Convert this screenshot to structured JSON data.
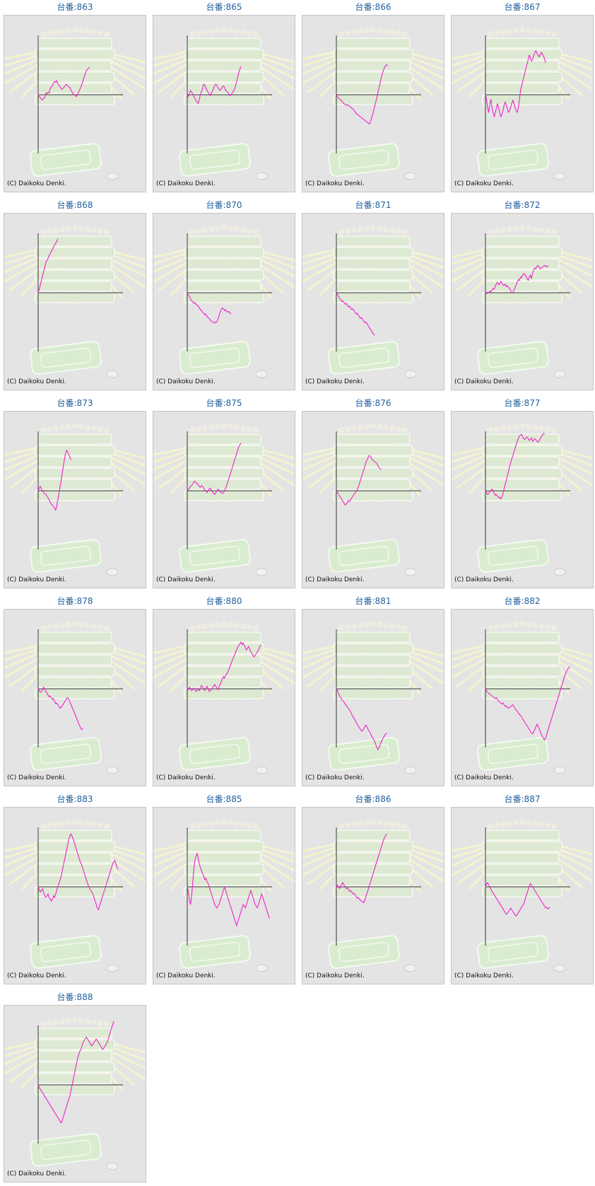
{
  "colors": {
    "title": "#1f5f9e",
    "line": "#ee22cc",
    "background": "#e4e4e4",
    "axis": "#333333"
  },
  "copyright": "(C) Daikoku Denki.",
  "chart_data": [
    {
      "type": "line",
      "title": "台番:863",
      "values": [
        0,
        -2,
        -3,
        -5,
        -6,
        -4,
        -3,
        2,
        1,
        3,
        2,
        7,
        9,
        10,
        13,
        15,
        14,
        16,
        12,
        11,
        9,
        7,
        6,
        8,
        9,
        11,
        12,
        10,
        9,
        8,
        5,
        3,
        1,
        0,
        -1,
        -2,
        0,
        3,
        6,
        9,
        12,
        16,
        20,
        24,
        27,
        29,
        30,
        31
      ]
    },
    {
      "type": "line",
      "title": "台番:865",
      "values": [
        0,
        -2,
        2,
        5,
        3,
        1,
        -2,
        -4,
        -7,
        -8,
        -10,
        -5,
        0,
        4,
        7,
        12,
        11,
        8,
        5,
        3,
        1,
        -1,
        2,
        4,
        7,
        10,
        12,
        11,
        8,
        6,
        5,
        7,
        9,
        10,
        8,
        5,
        4,
        3,
        1,
        -1,
        0,
        2,
        4,
        6,
        10,
        15,
        20,
        25,
        29,
        32
      ]
    },
    {
      "type": "line",
      "title": "台番:866",
      "values": [
        0,
        -2,
        -4,
        -5,
        -6,
        -7,
        -9,
        -10,
        -11,
        -12,
        -11,
        -12,
        -13,
        -14,
        -15,
        -16,
        -17,
        -19,
        -21,
        -22,
        -23,
        -24,
        -25,
        -26,
        -27,
        -28,
        -29,
        -30,
        -31,
        -32,
        -33,
        -31,
        -27,
        -23,
        -18,
        -13,
        -8,
        -3,
        3,
        8,
        14,
        19,
        24,
        28,
        31,
        33,
        34,
        33
      ]
    },
    {
      "type": "line",
      "title": "台番:867",
      "values": [
        0,
        -5,
        -15,
        -20,
        -10,
        -5,
        -15,
        -20,
        -25,
        -20,
        -15,
        -10,
        -15,
        -20,
        -25,
        -22,
        -18,
        -12,
        -8,
        -12,
        -16,
        -20,
        -18,
        -14,
        -10,
        -6,
        -10,
        -14,
        -18,
        -20,
        -15,
        -5,
        5,
        10,
        15,
        20,
        25,
        30,
        35,
        40,
        45,
        42,
        38,
        40,
        44,
        48,
        50,
        47,
        45,
        43,
        45,
        48,
        46,
        44,
        40,
        36
      ]
    },
    {
      "type": "line",
      "title": "台番:868",
      "values": [
        0,
        4,
        9,
        14,
        19,
        24,
        29,
        34,
        37,
        39,
        42,
        44,
        47,
        49,
        52,
        54,
        56,
        58,
        61
      ]
    },
    {
      "type": "line",
      "title": "台番:870",
      "values": [
        0,
        -2,
        -4,
        -7,
        -9,
        -10,
        -12,
        -11,
        -13,
        -14,
        -15,
        -17,
        -19,
        -20,
        -22,
        -23,
        -25,
        -24,
        -27,
        -28,
        -29,
        -31,
        -32,
        -33,
        -34,
        -33,
        -34,
        -33,
        -30,
        -26,
        -22,
        -19,
        -17,
        -18,
        -20,
        -19,
        -21,
        -22,
        -21,
        -23,
        -24
      ]
    },
    {
      "type": "line",
      "title": "台番:871",
      "values": [
        0,
        -2,
        -4,
        -6,
        -8,
        -10,
        -9,
        -11,
        -13,
        -12,
        -14,
        -16,
        -15,
        -17,
        -19,
        -18,
        -20,
        -22,
        -24,
        -23,
        -25,
        -27,
        -29,
        -28,
        -30,
        -32,
        -34,
        -33,
        -35,
        -37,
        -39,
        -41,
        -43,
        -45,
        -47,
        -48
      ]
    },
    {
      "type": "line",
      "title": "台番:872",
      "values": [
        0,
        -1,
        1,
        0,
        2,
        1,
        3,
        5,
        4,
        8,
        10,
        12,
        9,
        10,
        13,
        11,
        9,
        8,
        10,
        7,
        8,
        6,
        5,
        2,
        0,
        1,
        3,
        6,
        9,
        12,
        15,
        14,
        18,
        17,
        20,
        22,
        21,
        19,
        16,
        14,
        18,
        20,
        16,
        22,
        26,
        28,
        27,
        30,
        31,
        29,
        27,
        28,
        29,
        30,
        31,
        30,
        29,
        31
      ]
    },
    {
      "type": "line",
      "title": "台番:873",
      "values": [
        0,
        3,
        5,
        2,
        0,
        -2,
        -3,
        -4,
        -6,
        -8,
        -10,
        -13,
        -15,
        -16,
        -18,
        -20,
        -22,
        -17,
        -10,
        -3,
        5,
        12,
        20,
        28,
        36,
        42,
        46,
        44,
        41,
        38,
        35
      ]
    },
    {
      "type": "line",
      "title": "台番:875",
      "values": [
        0,
        1,
        3,
        5,
        6,
        8,
        10,
        11,
        9,
        8,
        7,
        5,
        4,
        6,
        5,
        3,
        1,
        0,
        -2,
        0,
        2,
        3,
        1,
        -1,
        -3,
        -4,
        -2,
        0,
        2,
        1,
        -1,
        -2,
        -3,
        -2,
        0,
        3,
        6,
        10,
        14,
        18,
        22,
        26,
        30,
        34,
        38,
        42,
        46,
        50,
        52,
        54
      ]
    },
    {
      "type": "line",
      "title": "台番:876",
      "values": [
        0,
        -2,
        -4,
        -6,
        -8,
        -10,
        -12,
        -14,
        -16,
        -15,
        -13,
        -11,
        -12,
        -10,
        -8,
        -6,
        -4,
        -3,
        -1,
        1,
        4,
        8,
        12,
        16,
        20,
        24,
        28,
        32,
        35,
        38,
        40,
        39,
        37,
        35,
        34,
        33,
        32,
        31,
        28,
        26,
        25,
        24
      ]
    },
    {
      "type": "line",
      "title": "台番:877",
      "values": [
        0,
        -2,
        -4,
        -3,
        -1,
        0,
        2,
        0,
        -3,
        -5,
        -4,
        -6,
        -8,
        -7,
        -9,
        -7,
        -3,
        2,
        7,
        12,
        17,
        22,
        27,
        32,
        36,
        40,
        44,
        48,
        52,
        56,
        59,
        62,
        63,
        64,
        61,
        59,
        58,
        60,
        61,
        59,
        57,
        58,
        60,
        56,
        57,
        59,
        58,
        56,
        55,
        57,
        59,
        61,
        63,
        65,
        64
      ]
    },
    {
      "type": "line",
      "title": "台番:878",
      "values": [
        0,
        -2,
        -4,
        -3,
        -1,
        2,
        0,
        -3,
        -5,
        -7,
        -9,
        -8,
        -10,
        -12,
        -11,
        -14,
        -17,
        -16,
        -18,
        -20,
        -22,
        -21,
        -19,
        -17,
        -15,
        -13,
        -11,
        -10,
        -12,
        -15,
        -18,
        -21,
        -24,
        -27,
        -30,
        -33,
        -36,
        -39,
        -42,
        -45,
        -46,
        -45
      ]
    },
    {
      "type": "line",
      "title": "台番:880",
      "values": [
        0,
        -1,
        2,
        0,
        -2,
        -1,
        1,
        -1,
        -3,
        -2,
        0,
        -2,
        1,
        4,
        2,
        0,
        -2,
        1,
        3,
        0,
        -3,
        -2,
        -1,
        1,
        3,
        5,
        3,
        1,
        -1,
        2,
        5,
        8,
        11,
        14,
        12,
        15,
        17,
        19,
        22,
        25,
        29,
        32,
        35,
        38,
        41,
        44,
        47,
        49,
        51,
        53,
        50,
        52,
        49,
        47,
        44,
        46,
        48,
        45,
        42,
        40,
        38,
        36,
        38,
        40,
        42,
        44,
        47,
        50
      ]
    },
    {
      "type": "line",
      "title": "台番:881",
      "values": [
        0,
        -2,
        -5,
        -8,
        -10,
        -12,
        -14,
        -15,
        -17,
        -19,
        -20,
        -22,
        -24,
        -26,
        -29,
        -31,
        -33,
        -35,
        -38,
        -40,
        -42,
        -44,
        -46,
        -48,
        -47,
        -45,
        -43,
        -41,
        -43,
        -46,
        -48,
        -50,
        -53,
        -55,
        -57,
        -60,
        -63,
        -66,
        -69,
        -66,
        -63,
        -60,
        -57,
        -55,
        -53,
        -51,
        -50
      ]
    },
    {
      "type": "line",
      "title": "台番:882",
      "values": [
        0,
        -2,
        -4,
        -5,
        -6,
        -7,
        -8,
        -9,
        -10,
        -11,
        -10,
        -12,
        -14,
        -15,
        -16,
        -17,
        -16,
        -18,
        -20,
        -19,
        -21,
        -22,
        -21,
        -20,
        -19,
        -18,
        -20,
        -22,
        -24,
        -25,
        -27,
        -29,
        -30,
        -32,
        -34,
        -36,
        -38,
        -40,
        -42,
        -44,
        -46,
        -48,
        -50,
        -51,
        -49,
        -46,
        -43,
        -40,
        -42,
        -45,
        -48,
        -51,
        -54,
        -56,
        -58,
        -55,
        -51,
        -47,
        -43,
        -39,
        -35,
        -31,
        -27,
        -23,
        -19,
        -15,
        -11,
        -7,
        -3,
        1,
        5,
        9,
        13,
        17,
        20,
        22,
        24,
        25
      ]
    },
    {
      "type": "line",
      "title": "台番:883",
      "values": [
        0,
        -3,
        -6,
        -4,
        -2,
        -6,
        -10,
        -12,
        -10,
        -8,
        -12,
        -14,
        -16,
        -14,
        -10,
        -12,
        -8,
        -4,
        0,
        4,
        8,
        12,
        18,
        24,
        30,
        36,
        42,
        48,
        54,
        58,
        60,
        57,
        54,
        50,
        46,
        42,
        38,
        34,
        30,
        27,
        24,
        20,
        16,
        12,
        8,
        4,
        1,
        -2,
        -4,
        -6,
        -8,
        -12,
        -16,
        -20,
        -24,
        -26,
        -22,
        -18,
        -14,
        -10,
        -6,
        -2,
        2,
        6,
        10,
        14,
        18,
        22,
        26,
        28,
        30,
        26,
        22,
        20
      ]
    },
    {
      "type": "line",
      "title": "台番:885",
      "values": [
        0,
        -5,
        -15,
        -20,
        -10,
        5,
        20,
        30,
        35,
        38,
        33,
        26,
        22,
        18,
        15,
        12,
        8,
        10,
        6,
        4,
        0,
        -4,
        -8,
        -12,
        -16,
        -20,
        -22,
        -24,
        -22,
        -20,
        -16,
        -12,
        -8,
        -4,
        0,
        -4,
        -8,
        -12,
        -16,
        -20,
        -24,
        -28,
        -32,
        -36,
        -40,
        -44,
        -40,
        -36,
        -32,
        -28,
        -24,
        -20,
        -22,
        -24,
        -20,
        -16,
        -12,
        -8,
        -4,
        -8,
        -12,
        -16,
        -20,
        -22,
        -24,
        -20,
        -16,
        -12,
        -8,
        -12,
        -16,
        -20,
        -24,
        -28,
        -32,
        -36
      ]
    },
    {
      "type": "line",
      "title": "台番:886",
      "values": [
        0,
        2,
        0,
        -2,
        1,
        3,
        5,
        2,
        0,
        -2,
        -1,
        -3,
        -5,
        -4,
        -6,
        -8,
        -7,
        -9,
        -11,
        -13,
        -12,
        -14,
        -15,
        -16,
        -17,
        -18,
        -15,
        -11,
        -7,
        -3,
        1,
        5,
        9,
        13,
        17,
        21,
        25,
        29,
        33,
        37,
        41,
        45,
        49,
        53,
        56,
        58,
        60
      ]
    },
    {
      "type": "line",
      "title": "台番:887",
      "values": [
        0,
        3,
        5,
        2,
        0,
        -3,
        -5,
        -7,
        -9,
        -11,
        -13,
        -15,
        -17,
        -19,
        -21,
        -23,
        -25,
        -27,
        -29,
        -31,
        -30,
        -28,
        -26,
        -24,
        -26,
        -28,
        -30,
        -32,
        -33,
        -31,
        -29,
        -27,
        -25,
        -23,
        -21,
        -19,
        -15,
        -11,
        -7,
        -3,
        1,
        4,
        2,
        0,
        -2,
        -4,
        -6,
        -8,
        -10,
        -12,
        -14,
        -16,
        -18,
        -20,
        -22,
        -24,
        -23,
        -25,
        -24,
        -23
      ]
    },
    {
      "type": "line",
      "title": "台番:888",
      "values": [
        0,
        -3,
        -5,
        -7,
        -9,
        -11,
        -13,
        -15,
        -17,
        -19,
        -21,
        -23,
        -25,
        -27,
        -29,
        -31,
        -33,
        -35,
        -37,
        -39,
        -41,
        -43,
        -40,
        -36,
        -32,
        -28,
        -24,
        -20,
        -16,
        -12,
        -6,
        0,
        6,
        12,
        18,
        24,
        30,
        34,
        38,
        40,
        44,
        48,
        50,
        52,
        54,
        52,
        50,
        48,
        46,
        44,
        46,
        48,
        50,
        52,
        50,
        48,
        46,
        44,
        42,
        40,
        42,
        44,
        46,
        48,
        52,
        56,
        60,
        64,
        68,
        72
      ]
    }
  ]
}
